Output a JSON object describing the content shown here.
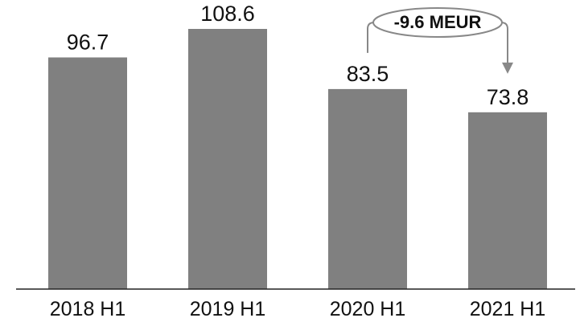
{
  "chart_data": {
    "type": "bar",
    "categories": [
      "2018 H1",
      "2019 H1",
      "2020 H1",
      "2021 H1"
    ],
    "values": [
      96.7,
      108.6,
      83.5,
      73.8
    ],
    "value_labels": [
      "96.7",
      "108.6",
      "83.5",
      "73.8"
    ],
    "title": "",
    "xlabel": "",
    "ylabel": "",
    "ylim": [
      0,
      120
    ],
    "grid": false,
    "legend": false,
    "bar_color": "#808080",
    "annotation": {
      "text": "-9.6 MEUR",
      "from_category": "2020 H1",
      "to_category": "2021 H1"
    }
  }
}
